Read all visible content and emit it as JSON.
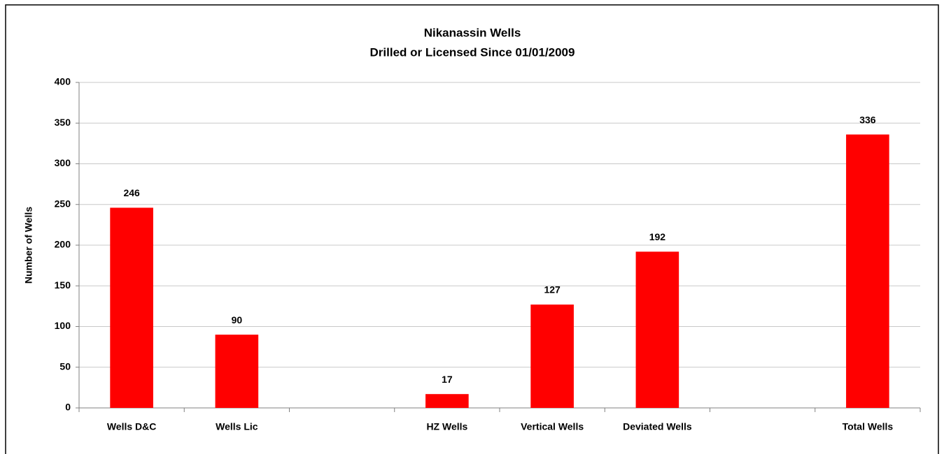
{
  "chart_data": {
    "type": "bar",
    "title": "Nikanassin Wells",
    "subtitle": "Drilled or Licensed Since 01/01/2009",
    "y_label": "Number of Wells",
    "categories": [
      "Wells D&C",
      "Wells Lic",
      null,
      "HZ Wells",
      "Vertical Wells",
      "Deviated Wells",
      null,
      "Total Wells"
    ],
    "values": [
      246,
      90,
      null,
      17,
      127,
      192,
      null,
      336
    ],
    "color": "#ff0000",
    "ylim": [
      0,
      400
    ],
    "yticks": [
      0,
      50,
      100,
      150,
      200,
      250,
      300,
      350,
      400
    ],
    "grid": true
  }
}
